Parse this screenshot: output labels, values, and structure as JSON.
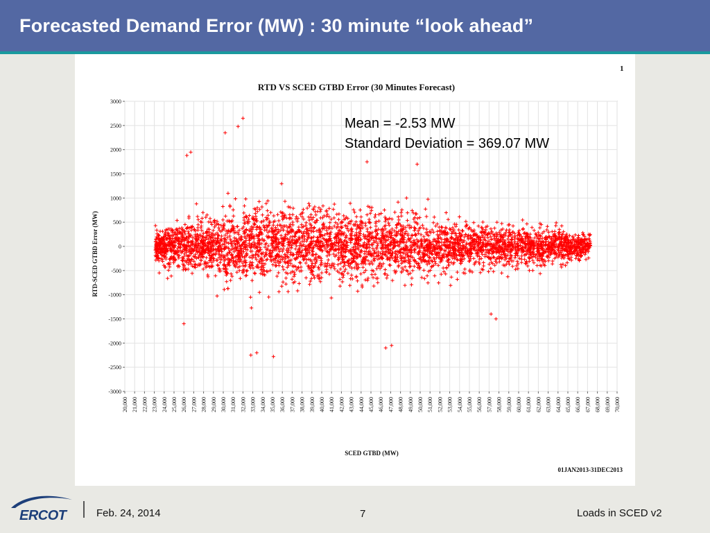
{
  "slide": {
    "title": "Forecasted Demand Error (MW) : 30 minute “look ahead”",
    "page_marker": "1",
    "date_range": "01JAN2013-31DEC2013"
  },
  "stats": {
    "mean": "Mean = -2.53 MW",
    "std": "Standard Deviation = 369.07 MW"
  },
  "footer": {
    "logo": "ERCOT",
    "date": "Feb. 24, 2014",
    "page": "7",
    "deck": "Loads in SCED v2"
  },
  "colors": {
    "title_bar": "#5368a3",
    "accent_rule": "#1a9a9e",
    "marker": "#ff0000"
  },
  "chart_data": {
    "type": "scatter",
    "title": "RTD VS SCED GTBD Error (30 Minutes Forecast)",
    "xlabel": "SCED GTBD (MW)",
    "ylabel": "RTD-SCED GTBD Error (MW)",
    "marker": "+",
    "grid": true,
    "xlim": [
      20000,
      70000
    ],
    "ylim": [
      -3000,
      3000
    ],
    "xticks": [
      20000,
      21000,
      22000,
      23000,
      24000,
      25000,
      26000,
      27000,
      28000,
      29000,
      30000,
      31000,
      32000,
      33000,
      34000,
      35000,
      36000,
      37000,
      38000,
      39000,
      40000,
      41000,
      42000,
      43000,
      44000,
      45000,
      46000,
      47000,
      48000,
      49000,
      50000,
      51000,
      52000,
      53000,
      54000,
      55000,
      56000,
      57000,
      58000,
      59000,
      60000,
      61000,
      62000,
      63000,
      64000,
      65000,
      66000,
      67000,
      68000,
      69000,
      70000
    ],
    "xtick_labels": [
      "20,000",
      "21,000",
      "22,000",
      "23,000",
      "24,000",
      "25,000",
      "26,000",
      "27,000",
      "28,000",
      "29,000",
      "30,000",
      "31,000",
      "32,000",
      "33,000",
      "34,000",
      "35,000",
      "36,000",
      "37,000",
      "38,000",
      "39,000",
      "40,000",
      "41,000",
      "42,000",
      "43,000",
      "44,000",
      "45,000",
      "46,000",
      "47,000",
      "48,000",
      "49,000",
      "50,000",
      "51,000",
      "52,000",
      "53,000",
      "54,000",
      "55,000",
      "56,000",
      "57,000",
      "58,000",
      "59,000",
      "60,000",
      "61,000",
      "62,000",
      "63,000",
      "64,000",
      "65,000",
      "66,000",
      "67,000",
      "68,000",
      "69,000",
      "70,000"
    ],
    "yticks": [
      3000,
      2500,
      2000,
      1500,
      1000,
      500,
      0,
      -500,
      -1000,
      -1500,
      -2000,
      -2500,
      -3000
    ],
    "ytick_labels": [
      "3000",
      "2500",
      "2000",
      "1500",
      "1000",
      "500",
      "0",
      "-500",
      "-1000",
      "-1500",
      "-2000",
      "-2500",
      "-3000"
    ],
    "series": [
      {
        "color": "#ff0000",
        "x_range": [
          23100,
          67300
        ],
        "envelope": [
          {
            "x": 23500,
            "sd": 150
          },
          {
            "x": 25000,
            "sd": 220
          },
          {
            "x": 28000,
            "sd": 290
          },
          {
            "x": 31000,
            "sd": 340
          },
          {
            "x": 35000,
            "sd": 380
          },
          {
            "x": 38000,
            "sd": 360
          },
          {
            "x": 42000,
            "sd": 330
          },
          {
            "x": 46000,
            "sd": 300
          },
          {
            "x": 50000,
            "sd": 250
          },
          {
            "x": 55000,
            "sd": 220
          },
          {
            "x": 60000,
            "sd": 190
          },
          {
            "x": 64000,
            "sd": 160
          },
          {
            "x": 67000,
            "sd": 110
          }
        ],
        "notable_points": [
          {
            "x": 32000,
            "y": 2650
          },
          {
            "x": 31500,
            "y": 2480
          },
          {
            "x": 30200,
            "y": 2350
          },
          {
            "x": 26700,
            "y": 1950
          },
          {
            "x": 26300,
            "y": 1880
          },
          {
            "x": 44600,
            "y": 1750
          },
          {
            "x": 49700,
            "y": 1700
          },
          {
            "x": 26000,
            "y": -1600
          },
          {
            "x": 32800,
            "y": -2250
          },
          {
            "x": 33400,
            "y": -2200
          },
          {
            "x": 35100,
            "y": -2280
          },
          {
            "x": 47100,
            "y": -2050
          },
          {
            "x": 46500,
            "y": -2100
          },
          {
            "x": 57700,
            "y": -1500
          },
          {
            "x": 57200,
            "y": -1400
          }
        ]
      }
    ]
  }
}
